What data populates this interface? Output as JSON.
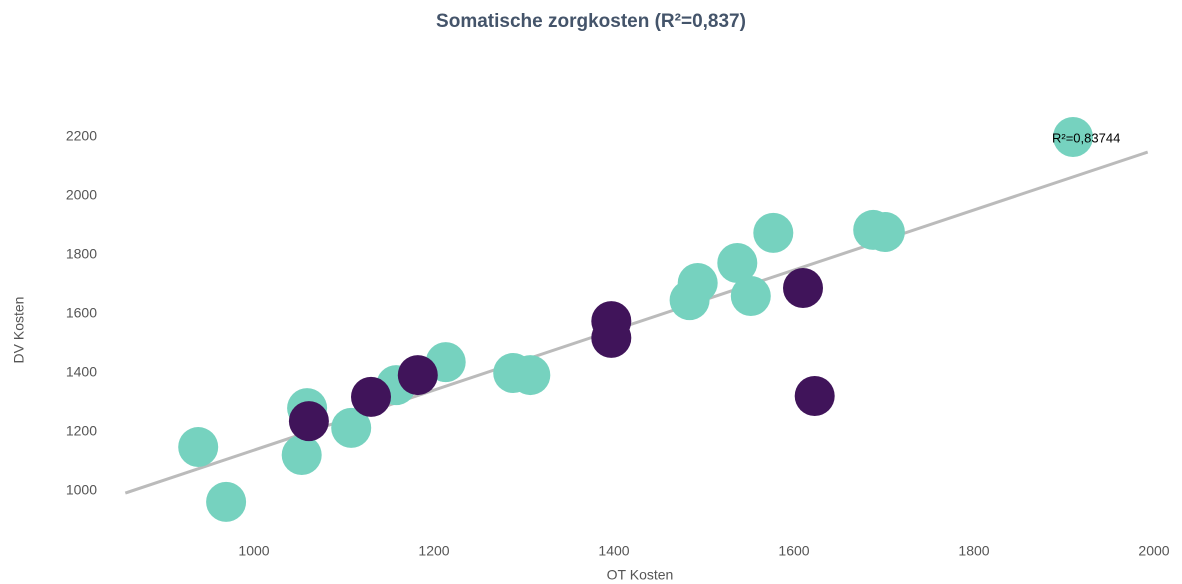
{
  "chart_data": {
    "type": "scatter",
    "title": "Somatische zorgkosten (R²=0,837)",
    "x_label": "OT Kosten",
    "y_label": "DV Kosten",
    "annotation": "R²=0,83744",
    "xlim": [
      850,
      2000
    ],
    "xticks": [
      1000,
      1200,
      1400,
      1600,
      1800,
      2000
    ],
    "ylim": [
      850,
      2300
    ],
    "yticks": [
      1000,
      1200,
      1400,
      1600,
      1800,
      2000,
      2200
    ],
    "trendline": {
      "color": "#bbbbbb",
      "x": [
        857,
        1993
      ],
      "y": [
        993,
        2149
      ]
    },
    "series": [
      {
        "color": "#76d2bf",
        "x": [
          1910,
          1577,
          1688,
          1701,
          1537,
          1493,
          1484,
          1552,
          1213,
          1288,
          1307,
          1158,
          1059,
          1108,
          1053,
          938,
          969
        ],
        "y": [
          2200,
          1875,
          1885,
          1878,
          1773,
          1705,
          1647,
          1661,
          1437,
          1400,
          1393,
          1359,
          1281,
          1214,
          1122,
          1149,
          963
        ]
      },
      {
        "color": "#40145a",
        "x": [
          1610,
          1623,
          1397,
          1397,
          1182,
          1130,
          1061
        ],
        "y": [
          1688,
          1322,
          1576,
          1519,
          1393,
          1319,
          1237
        ]
      }
    ]
  }
}
